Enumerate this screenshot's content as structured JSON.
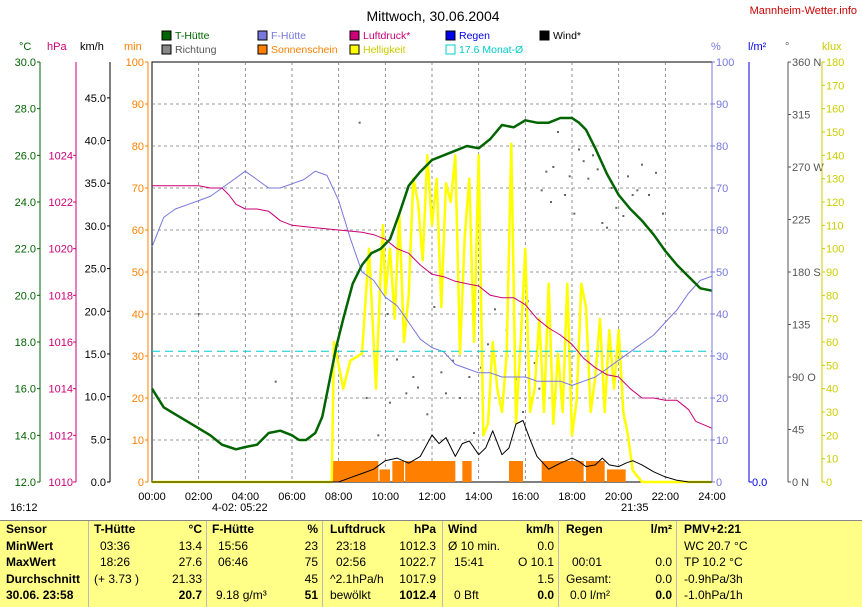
{
  "title": "Mittwoch, 30.06.2004",
  "site": "Mannheim-Wetter.info",
  "colors": {
    "t_huette": "#006400",
    "f_huette": "#7777dd",
    "luftdruck": "#cc0077",
    "sonnenschein": "#ff8000",
    "helligkeit": "#ffff00",
    "regen": "#0000ee",
    "monat_avg": "#00cccc",
    "wind": "#000000",
    "richtung": "#666666"
  },
  "legend": [
    {
      "label": "T-Hütte",
      "color": "#006400"
    },
    {
      "label": "Richtung",
      "color": "#888888"
    },
    {
      "label": "F-Hütte",
      "color": "#7777dd"
    },
    {
      "label": "Sonnenschein",
      "color": "#ff8000"
    },
    {
      "label": "Luftdruck*",
      "color": "#cc0077"
    },
    {
      "label": "Helligkeit",
      "color": "#ffff00"
    },
    {
      "label": "Regen",
      "color": "#0000ee"
    },
    {
      "label": "17.6 Monat-Ø",
      "color": "#00cccc"
    },
    {
      "label": "Wind*",
      "color": "#000000"
    }
  ],
  "axis_headers": {
    "celsius": "°C",
    "hpa": "hPa",
    "kmh": "km/h",
    "min": "min",
    "percent": "%",
    "lm2": "l/m²",
    "deg": "°",
    "klux": "klux"
  },
  "chart_data": {
    "type": "line",
    "x_unit": "hours",
    "xlim": [
      0,
      24
    ],
    "x_ticks": [
      "00:00",
      "02:00",
      "04:00",
      "06:00",
      "08:00",
      "10:00",
      "12:00",
      "14:00",
      "16:00",
      "18:00",
      "20:00",
      "22:00",
      "24:00"
    ],
    "axes": {
      "celsius": {
        "range": [
          12,
          30
        ],
        "ticks": [
          "12.0",
          "14.0",
          "16.0",
          "18.0",
          "20.0",
          "22.0",
          "24.0",
          "26.0",
          "28.0",
          "30.0"
        ]
      },
      "hpa": {
        "range": [
          1010,
          1028
        ],
        "ticks": [
          "1010",
          "1012",
          "1014",
          "1016",
          "1018",
          "1020",
          "1022",
          "1024"
        ]
      },
      "kmh": {
        "range": [
          0,
          49.2
        ],
        "ticks": [
          "0.0",
          "5.0",
          "10.0",
          "15.0",
          "20.0",
          "25.0",
          "30.0",
          "35.0",
          "40.0",
          "45.0"
        ]
      },
      "min": {
        "range": [
          0,
          100
        ],
        "ticks": [
          "0",
          "10",
          "20",
          "30",
          "40",
          "50",
          "60",
          "70",
          "80",
          "90",
          "100"
        ]
      },
      "percent": {
        "range": [
          0,
          100
        ],
        "ticks": [
          "0",
          "10",
          "20",
          "30",
          "40",
          "50",
          "60",
          "70",
          "80",
          "90",
          "100"
        ]
      },
      "lm2": {
        "range": [
          0,
          1
        ],
        "ticks": [
          "0.0"
        ]
      },
      "deg": {
        "range": [
          0,
          360
        ],
        "ticks": [
          "0 N",
          "45",
          "90 O",
          "135",
          "180 S",
          "225",
          "270 W",
          "315",
          "360 N"
        ]
      },
      "klux": {
        "range": [
          0,
          180
        ],
        "ticks": [
          "0",
          "10",
          "20",
          "30",
          "40",
          "50",
          "60",
          "70",
          "80",
          "90",
          "100",
          "110",
          "120",
          "130",
          "140",
          "150",
          "160",
          "170",
          "180"
        ]
      }
    },
    "series": [
      {
        "name": "T-Hütte",
        "unit": "°C",
        "x": [
          0,
          0.5,
          1,
          1.5,
          2,
          2.5,
          3,
          3.3,
          3.6,
          4,
          4.5,
          5,
          5.5,
          6,
          6.3,
          6.6,
          7,
          7.3,
          7.6,
          7.9,
          8.2,
          8.6,
          9,
          9.4,
          9.8,
          10.2,
          10.6,
          11,
          11.5,
          12,
          12.5,
          13,
          13.5,
          14,
          14.5,
          15,
          15.5,
          16,
          16.5,
          17,
          17.5,
          18,
          18.3,
          18.6,
          19,
          19.5,
          20,
          20.5,
          21,
          21.5,
          22,
          22.5,
          23,
          23.5,
          24
        ],
        "y": [
          16,
          15.2,
          14.9,
          14.6,
          14.3,
          14,
          13.6,
          13.5,
          13.4,
          13.5,
          13.6,
          14.1,
          14.2,
          14.0,
          13.8,
          13.8,
          14.1,
          14.8,
          16.3,
          17.8,
          19.0,
          20.5,
          21.3,
          21.8,
          22.0,
          22.4,
          23.5,
          24.7,
          25.3,
          25.8,
          26.0,
          26.2,
          26.4,
          26.3,
          26.7,
          27.3,
          27.2,
          27.5,
          27.4,
          27.4,
          27.6,
          27.6,
          27.4,
          27.1,
          26.3,
          25.2,
          24.3,
          23.7,
          23.2,
          22.6,
          21.9,
          21.3,
          20.8,
          20.3,
          20.2
        ]
      },
      {
        "name": "F-Hütte",
        "unit": "%",
        "x": [
          0,
          0.5,
          1,
          1.5,
          2,
          2.5,
          3,
          3.5,
          4,
          4.5,
          5,
          5.5,
          6,
          6.5,
          7,
          7.5,
          8,
          8.5,
          9,
          9.5,
          10,
          10.5,
          11,
          11.5,
          12,
          12.5,
          13,
          13.5,
          14,
          14.5,
          15,
          15.5,
          16,
          16.5,
          17,
          17.5,
          18,
          18.5,
          19,
          19.5,
          20,
          20.5,
          21,
          21.5,
          22,
          22.5,
          23,
          23.5,
          24
        ],
        "y": [
          56,
          63,
          65,
          66,
          67,
          68,
          70,
          72,
          74,
          72,
          70,
          70,
          71,
          72,
          74,
          73,
          67,
          58,
          50,
          48,
          44,
          42,
          38,
          34,
          32,
          31,
          28,
          27,
          26,
          26,
          25,
          25,
          25,
          24,
          24,
          24,
          23,
          24,
          25,
          27,
          29,
          31,
          33,
          35,
          38,
          41,
          45,
          48,
          49
        ]
      },
      {
        "name": "Luftdruck*",
        "unit": "hPa",
        "x": [
          0,
          1,
          2,
          2.5,
          3,
          3.3,
          3.6,
          4,
          4.5,
          5,
          5.5,
          6,
          7,
          8,
          9,
          9.5,
          10,
          10.5,
          11,
          11.5,
          12,
          12.5,
          13,
          13.5,
          14,
          14.5,
          15,
          15.5,
          16,
          16.5,
          17,
          17.5,
          18,
          18.5,
          19,
          19.5,
          20,
          20.5,
          21,
          21.5,
          22,
          22.5,
          23,
          23.3,
          24
        ],
        "y": [
          1022.7,
          1022.7,
          1022.7,
          1022.6,
          1022.6,
          1022.3,
          1021.9,
          1021.7,
          1021.7,
          1021.6,
          1021.2,
          1021.0,
          1020.9,
          1020.8,
          1020.7,
          1020.6,
          1020.4,
          1020.0,
          1019.8,
          1019.3,
          1018.9,
          1018.8,
          1018.6,
          1018.5,
          1018.4,
          1018.0,
          1017.9,
          1017.9,
          1017.6,
          1017.0,
          1016.6,
          1016.3,
          1015.9,
          1015.3,
          1014.9,
          1014.6,
          1014.5,
          1014.0,
          1013.6,
          1013.6,
          1013.5,
          1013.5,
          1013.1,
          1012.6,
          1012.3
        ]
      },
      {
        "name": "Helligkeit",
        "unit": "klux",
        "x": [
          0,
          7.7,
          7.8,
          8.2,
          8.5,
          9,
          9.3,
          9.6,
          9.8,
          9.9,
          10,
          10.2,
          10.4,
          10.6,
          10.8,
          11,
          11.2,
          11.4,
          11.6,
          11.8,
          12,
          12.2,
          12.4,
          12.6,
          12.8,
          13,
          13.2,
          13.4,
          13.6,
          13.8,
          14,
          14.2,
          14.4,
          14.6,
          14.8,
          15,
          15.2,
          15.4,
          15.6,
          15.8,
          16,
          16.2,
          16.4,
          16.6,
          16.8,
          17,
          17.2,
          17.4,
          17.6,
          17.8,
          18,
          18.2,
          18.4,
          18.6,
          18.8,
          19,
          19.2,
          19.4,
          19.6,
          19.8,
          20,
          20.2,
          20.4,
          20.6,
          21,
          22,
          24
        ],
        "y": [
          0,
          0,
          60,
          40,
          52,
          55,
          100,
          40,
          90,
          110,
          80,
          100,
          70,
          115,
          60,
          80,
          130,
          120,
          95,
          140,
          110,
          130,
          75,
          128,
          120,
          140,
          55,
          105,
          130,
          60,
          140,
          20,
          25,
          60,
          40,
          30,
          55,
          145,
          25,
          60,
          100,
          30,
          40,
          70,
          30,
          85,
          25,
          55,
          30,
          85,
          20,
          35,
          85,
          75,
          30,
          45,
          70,
          30,
          65,
          40,
          65,
          30,
          20,
          5,
          0,
          0,
          0
        ]
      },
      {
        "name": "Wind*",
        "unit": "km/h",
        "x": [
          0,
          7.5,
          8,
          8.5,
          9,
          9.5,
          10,
          10.5,
          11,
          11.5,
          12,
          12.3,
          12.6,
          13,
          13.3,
          13.6,
          14,
          14.3,
          14.6,
          15,
          15.3,
          15.6,
          15.9,
          16.2,
          16.5,
          17,
          17.5,
          18,
          18.3,
          18.6,
          19,
          19.3,
          19.6,
          20,
          20.3,
          20.6,
          21,
          21.5,
          22,
          22.5,
          23,
          24
        ],
        "y": [
          0,
          0,
          0,
          0.5,
          1,
          1.5,
          2.5,
          2.8,
          2.2,
          3,
          5.5,
          4.5,
          5.2,
          3,
          4.5,
          4.8,
          3.2,
          4,
          6,
          3.2,
          4,
          6.8,
          7.2,
          5,
          3,
          1.5,
          2.2,
          2.8,
          2.4,
          1.8,
          2,
          2.8,
          2,
          1.8,
          2.2,
          2.5,
          2,
          1.2,
          0.6,
          0.2,
          0,
          0
        ]
      },
      {
        "name": "17.6 Monat-Ø",
        "unit": "°C",
        "x": [
          0,
          24
        ],
        "y": [
          17.6,
          17.6
        ]
      }
    ],
    "sonnenschein": {
      "unit": "min",
      "bars": [
        {
          "from": 7.75,
          "to": 9.7,
          "value": 5
        },
        {
          "from": 9.75,
          "to": 10.2,
          "value": 3
        },
        {
          "from": 10.3,
          "to": 10.8,
          "value": 5
        },
        {
          "from": 10.85,
          "to": 13.0,
          "value": 5
        },
        {
          "from": 13.3,
          "to": 13.7,
          "value": 5
        },
        {
          "from": 15.3,
          "to": 15.9,
          "value": 5
        },
        {
          "from": 16.7,
          "to": 18.5,
          "value": 5
        },
        {
          "from": 18.6,
          "to": 19.4,
          "value": 5
        },
        {
          "from": 19.5,
          "to": 20.3,
          "value": 3
        }
      ]
    },
    "richtung_points": {
      "unit": "°",
      "points": [
        [
          2.0,
          144
        ],
        [
          5.3,
          86
        ],
        [
          8.9,
          308
        ],
        [
          9.2,
          72
        ],
        [
          9.7,
          40
        ],
        [
          10.1,
          144
        ],
        [
          10.2,
          68
        ],
        [
          10.5,
          105
        ],
        [
          10.9,
          76
        ],
        [
          11.2,
          90
        ],
        [
          11.4,
          81
        ],
        [
          11.8,
          58
        ],
        [
          12.1,
          150
        ],
        [
          12.4,
          94
        ],
        [
          12.6,
          76
        ],
        [
          12.9,
          104
        ],
        [
          13.2,
          72
        ],
        [
          13.6,
          90
        ],
        [
          13.8,
          42
        ],
        [
          14.1,
          98
        ],
        [
          14.4,
          118
        ],
        [
          14.7,
          148
        ],
        [
          15.2,
          130
        ],
        [
          15.6,
          88
        ],
        [
          15.9,
          60
        ],
        [
          16.1,
          155
        ],
        [
          16.4,
          102
        ],
        [
          16.6,
          80
        ],
        [
          16.7,
          250
        ],
        [
          16.9,
          266
        ],
        [
          17.1,
          240
        ],
        [
          17.2,
          270
        ],
        [
          17.4,
          300
        ],
        [
          17.7,
          246
        ],
        [
          17.9,
          262
        ],
        [
          18.1,
          230
        ],
        [
          18.3,
          285
        ],
        [
          18.5,
          275
        ],
        [
          18.7,
          260
        ],
        [
          18.9,
          280
        ],
        [
          19.1,
          268
        ],
        [
          19.3,
          222
        ],
        [
          19.5,
          218
        ],
        [
          19.7,
          252
        ],
        [
          19.9,
          235
        ],
        [
          20.2,
          228
        ],
        [
          20.4,
          262
        ],
        [
          20.6,
          246
        ],
        [
          20.8,
          250
        ],
        [
          21.0,
          272
        ],
        [
          21.3,
          246
        ],
        [
          21.6,
          265
        ],
        [
          21.9,
          230
        ]
      ]
    },
    "annotations": {
      "left_time": "16:12",
      "min_marker": "4-02: 05:22",
      "right_time": "21:35"
    }
  },
  "table": {
    "headers": {
      "sensor": "Sensor",
      "t": "T-Hütte",
      "t_unit": "°C",
      "f": "F-Hütte",
      "f_unit": "%",
      "l": "Luftdruck",
      "l_unit": "hPa",
      "w": "Wind",
      "w_unit": "km/h",
      "r": "Regen",
      "r_unit": "l/m²",
      "pmv": "PMV+2:21"
    },
    "rows": [
      {
        "label": "MinWert",
        "t_time": "03:36",
        "t_val": "13.4",
        "f_time": "15:56",
        "f_val": "23",
        "l_time": "23:18",
        "l_val": "1012.3",
        "w_label": "Ø 10 min.",
        "w_val": "0.0",
        "r_time": "",
        "r_val": "",
        "pmv": "WC 20.7 °C"
      },
      {
        "label": "MaxWert",
        "t_time": "18:26",
        "t_val": "27.6",
        "f_time": "06:46",
        "f_val": "75",
        "l_time": "02:56",
        "l_val": "1022.7",
        "w_label": "15:41",
        "w_val": "O 10.1",
        "r_time": "00:01",
        "r_val": "0.0",
        "pmv": "TP 10.2 °C"
      },
      {
        "label": "Durchschnitt",
        "t_time": "(+ 3.73 )",
        "t_val": "21.33",
        "f_time": "",
        "f_val": "45",
        "l_time": "^2.1hPa/h",
        "l_val": "1017.9",
        "w_label": "",
        "w_val": "1.5",
        "r_time": "Gesamt:",
        "r_val": "0.0",
        "pmv": "-0.9hPa/3h"
      },
      {
        "label": "30.06. 23:58",
        "t_time": "",
        "t_val": "20.7",
        "f_time": "9.18 g/m³",
        "f_val": "51",
        "l_time": "bewölkt",
        "l_val": "1012.4",
        "w_label": "0 Bft",
        "w_val": "0.0",
        "r_time": "0.0 l/m²",
        "r_val": "0.0",
        "pmv": "-1.0hPa/1h"
      }
    ]
  }
}
